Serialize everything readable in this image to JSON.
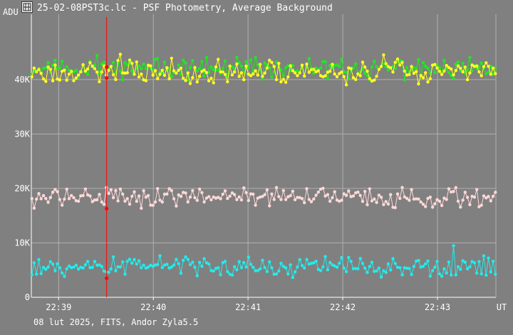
{
  "window": {
    "title": "25-02-08PST3c.lc - PSF Photometry, Average Background",
    "icon": "film-strip-icon"
  },
  "footer": {
    "info": "08 lut 2025, FITS, Andor Zyla5.5"
  },
  "colors": {
    "background": "#808080",
    "grid": "#b0b0b0",
    "cursor": "#ff0000",
    "green": "#22e622",
    "yellow": "#ffff22",
    "pink": "#ffd8d8",
    "cyan": "#22ecec"
  },
  "chart_data": {
    "type": "line",
    "title": "25-02-08PST3c.lc - PSF Photometry, Average Background",
    "ylabel": "ADU",
    "xlabel": "UT",
    "x_ticks": [
      "22:39",
      "22:40",
      "22:41",
      "22:42",
      "22:43"
    ],
    "x_tick_minutes": [
      39,
      40,
      41,
      42,
      43
    ],
    "xlim_minutes": [
      38.712,
      43.617
    ],
    "y_ticks": [
      "0",
      "10K",
      "20K",
      "30K",
      "40K"
    ],
    "y_tick_values": [
      0,
      10000,
      20000,
      30000,
      40000
    ],
    "ylim": [
      0,
      52000
    ],
    "grid": true,
    "cursor_minute": 39.507,
    "cursor_values": {
      "green": 42300,
      "yellow": 40300,
      "pink": 16300,
      "cyan": 3500
    },
    "series": [
      {
        "key": "green",
        "color": "#22e622",
        "mean": 42000,
        "spread": 1700,
        "n": 200,
        "seed": 11
      },
      {
        "key": "yellow",
        "color": "#ffff22",
        "mean": 41500,
        "spread": 2000,
        "n": 200,
        "seed": 23
      },
      {
        "key": "pink",
        "color": "#ffd8d8",
        "mean": 18400,
        "spread": 1700,
        "n": 200,
        "seed": 37
      },
      {
        "key": "cyan",
        "color": "#22ecec",
        "mean": 5600,
        "spread": 1700,
        "n": 200,
        "seed": 53
      }
    ]
  }
}
